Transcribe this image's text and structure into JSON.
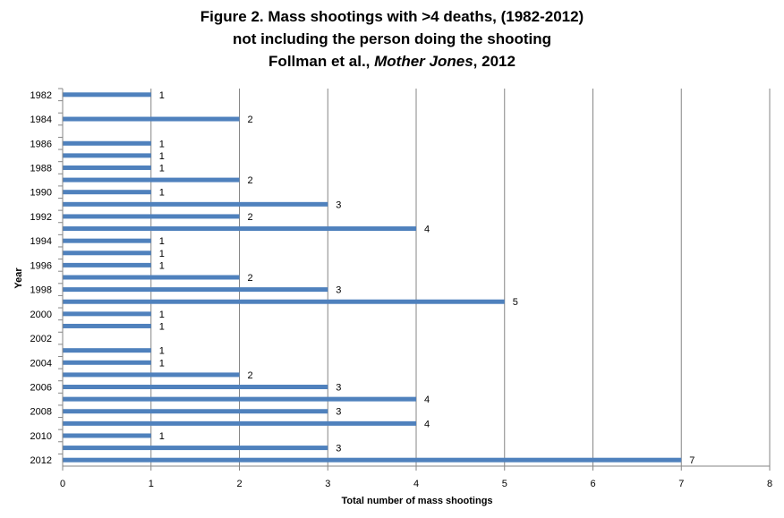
{
  "title": {
    "line1": "Figure 2. Mass shootings with >4 deaths, (1982-2012)",
    "line2": "not including the person doing the shooting",
    "line3_prefix": "Follman et al., ",
    "line3_italic": "Mother Jones",
    "line3_suffix": ", 2012"
  },
  "chart_data": {
    "type": "bar",
    "orientation": "horizontal",
    "title": "Figure 2. Mass shootings with >4 deaths, (1982-2012) not including the person doing the shooting Follman et al., Mother Jones, 2012",
    "xlabel": "Total number of mass shootings",
    "ylabel": "Year",
    "xlim": [
      0,
      8
    ],
    "xticks": [
      0,
      1,
      2,
      3,
      4,
      5,
      6,
      7,
      8
    ],
    "grid": "vertical",
    "categories": [
      "1982",
      "1983",
      "1984",
      "1985",
      "1986",
      "1987",
      "1988",
      "1989",
      "1990",
      "1991",
      "1992",
      "1993",
      "1994",
      "1995",
      "1996",
      "1997",
      "1998",
      "1999",
      "2000",
      "2001",
      "2002",
      "2003",
      "2004",
      "2005",
      "2006",
      "2007",
      "2008",
      "2009",
      "2010",
      "2011",
      "2012"
    ],
    "ytick_labels": [
      "1982",
      "1984",
      "1986",
      "1988",
      "1990",
      "1992",
      "1994",
      "1996",
      "1998",
      "2000",
      "2002",
      "2004",
      "2006",
      "2008",
      "2010",
      "2012"
    ],
    "values": [
      1,
      0,
      2,
      0,
      1,
      1,
      1,
      2,
      1,
      3,
      2,
      4,
      1,
      1,
      1,
      2,
      3,
      5,
      1,
      1,
      0,
      1,
      1,
      2,
      3,
      4,
      3,
      4,
      1,
      3,
      7
    ],
    "bar_color": "#4f81bd"
  }
}
